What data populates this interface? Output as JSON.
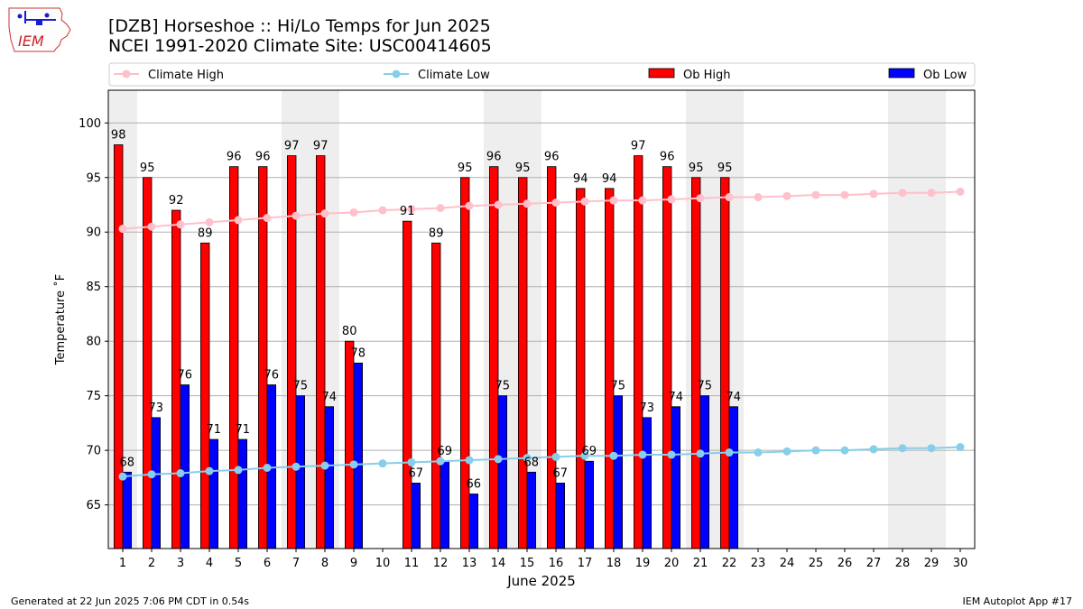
{
  "logo": {
    "text": "IEM"
  },
  "chart_data": {
    "type": "bar",
    "title": "[DZB] Horseshoe :: Hi/Lo Temps for Jun 2025",
    "subtitle": "NCEI 1991-2020 Climate Site: USC00414605",
    "xlabel": "June 2025",
    "ylabel": "Temperature ˚F",
    "ylim": [
      61,
      103
    ],
    "yticks": [
      65,
      70,
      75,
      80,
      85,
      90,
      95,
      100
    ],
    "grid": true,
    "legend_position": "top",
    "weekend_days": [
      1,
      7,
      8,
      14,
      15,
      21,
      22,
      28,
      29
    ],
    "categories": [
      "1",
      "2",
      "3",
      "4",
      "5",
      "6",
      "7",
      "8",
      "9",
      "10",
      "11",
      "12",
      "13",
      "14",
      "15",
      "16",
      "17",
      "18",
      "19",
      "20",
      "21",
      "22",
      "23",
      "24",
      "25",
      "26",
      "27",
      "28",
      "29",
      "30"
    ],
    "series": [
      {
        "name": "Climate High",
        "kind": "line",
        "color": "#ffc0cb",
        "values": [
          90.3,
          90.5,
          90.7,
          90.9,
          91.1,
          91.3,
          91.5,
          91.7,
          91.8,
          92.0,
          92.1,
          92.2,
          92.4,
          92.5,
          92.6,
          92.7,
          92.8,
          92.9,
          92.9,
          93.0,
          93.1,
          93.2,
          93.2,
          93.3,
          93.4,
          93.4,
          93.5,
          93.6,
          93.6,
          93.7
        ]
      },
      {
        "name": "Climate Low",
        "kind": "line",
        "color": "#87ceeb",
        "values": [
          67.6,
          67.8,
          67.9,
          68.1,
          68.2,
          68.4,
          68.5,
          68.6,
          68.7,
          68.8,
          68.9,
          69.0,
          69.1,
          69.2,
          69.3,
          69.4,
          69.5,
          69.5,
          69.6,
          69.6,
          69.7,
          69.8,
          69.8,
          69.9,
          70.0,
          70.0,
          70.1,
          70.2,
          70.2,
          70.3
        ]
      },
      {
        "name": "Ob High",
        "kind": "bar",
        "color": "#ff0000",
        "values": [
          98,
          95,
          92,
          89,
          96,
          96,
          97,
          97,
          80,
          null,
          91,
          89,
          95,
          96,
          95,
          96,
          94,
          94,
          97,
          96,
          95,
          95,
          null,
          null,
          null,
          null,
          null,
          null,
          null,
          null
        ]
      },
      {
        "name": "Ob Low",
        "kind": "bar",
        "color": "#0000ff",
        "values": [
          68,
          73,
          76,
          71,
          71,
          76,
          75,
          74,
          78,
          null,
          67,
          69,
          66,
          75,
          68,
          67,
          69,
          75,
          73,
          74,
          75,
          74,
          null,
          null,
          null,
          null,
          null,
          null,
          null,
          null
        ]
      }
    ]
  },
  "footer": {
    "generated": "Generated at 22 Jun 2025 7:06 PM CDT in 0.54s",
    "app": "IEM Autoplot App #17"
  }
}
